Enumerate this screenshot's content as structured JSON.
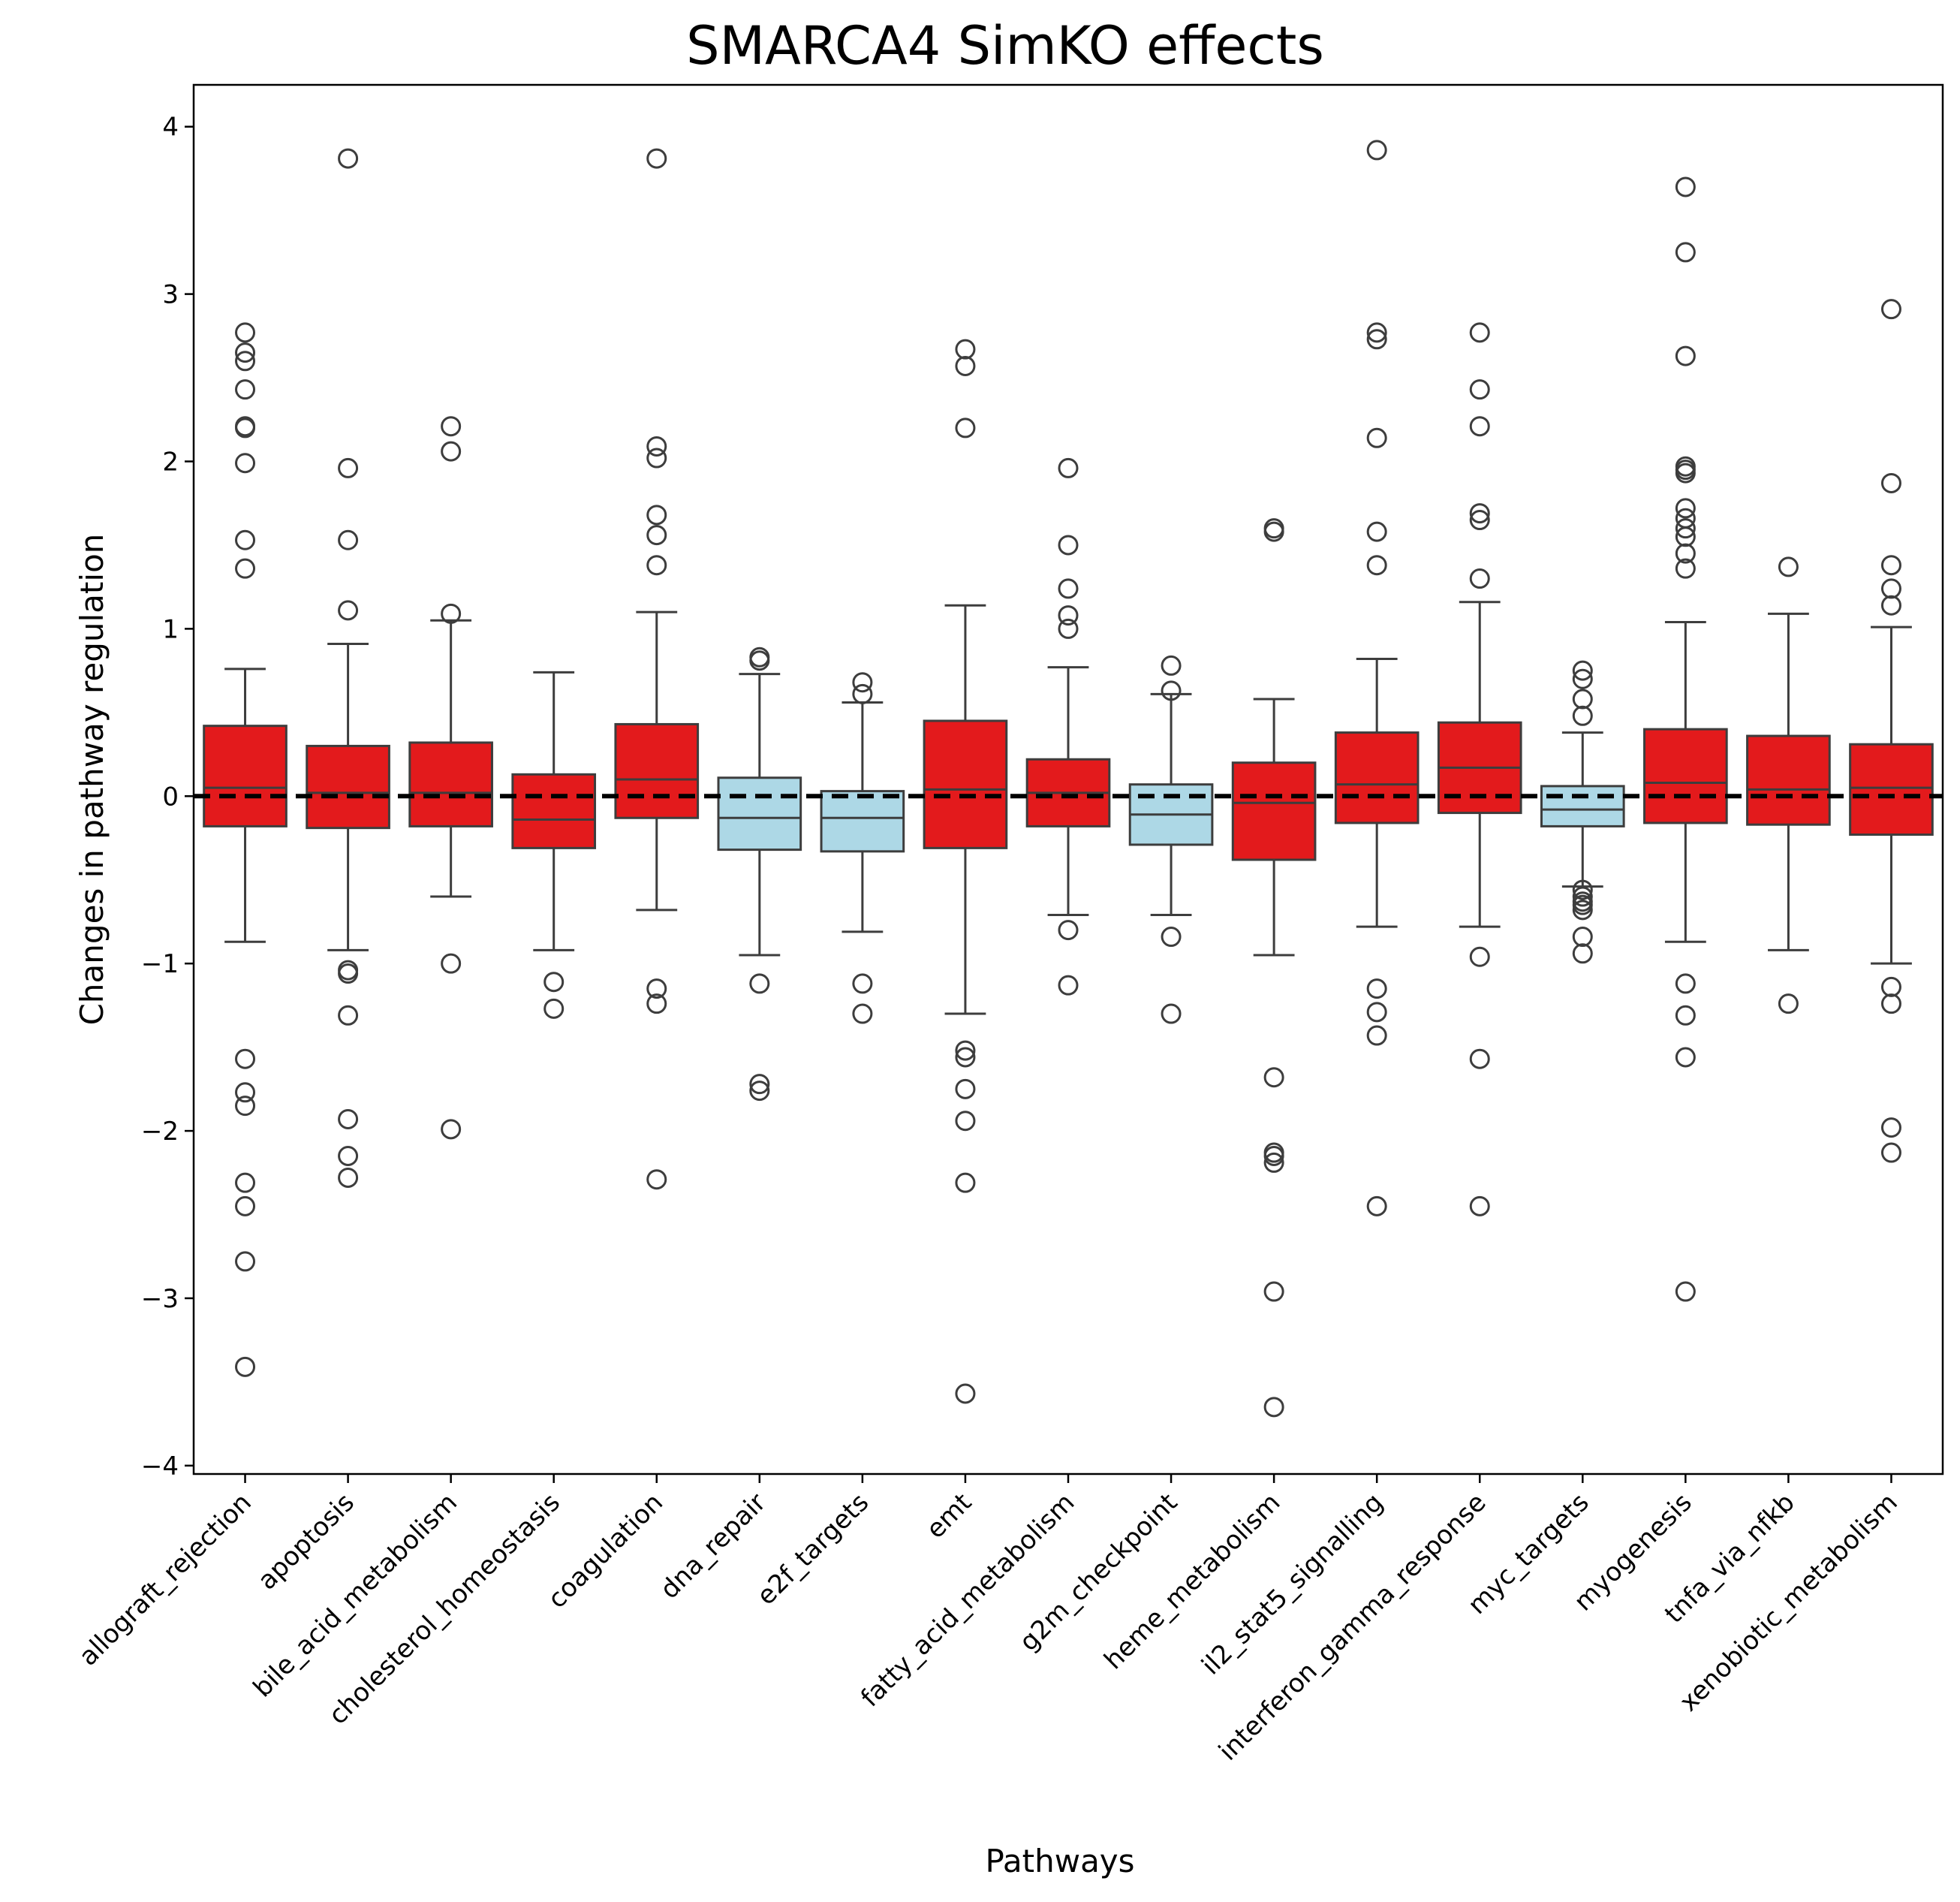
{
  "chart_data": {
    "type": "box",
    "title": "SMARCA4 SimKO effects",
    "xlabel": "Pathways",
    "ylabel": "Changes in pathway regulation",
    "ylim": [
      -4.05,
      4.25
    ],
    "yticks": [
      -4,
      -3,
      -2,
      -1,
      0,
      1,
      2,
      3,
      4
    ],
    "ytick_labels": [
      "−4",
      "−3",
      "−2",
      "−1",
      "0",
      "1",
      "2",
      "3",
      "4"
    ],
    "reference_line": 0,
    "colors": {
      "up": "#e31a1c",
      "down": "#add8e6",
      "stroke": "#3d3d3d",
      "reference": "#000000"
    },
    "categories": [
      "allograft_rejection",
      "apoptosis",
      "bile_acid_metabolism",
      "cholesterol_homeostasis",
      "coagulation",
      "dna_repair",
      "e2f_targets",
      "emt",
      "fatty_acid_metabolism",
      "g2m_checkpoint",
      "heme_metabolism",
      "il2_stat5_signalling",
      "interferon_gamma_response",
      "myc_targets",
      "myogenesis",
      "tnfa_via_nfkb",
      "xenobiotic_metabolism"
    ],
    "boxes": [
      {
        "category": "allograft_rejection",
        "color": "up",
        "q1": -0.18,
        "median": 0.05,
        "q3": 0.42,
        "whisker_low": -0.87,
        "whisker_high": 0.76,
        "outliers": [
          2.77,
          2.65,
          2.6,
          2.43,
          2.21,
          2.2,
          1.99,
          1.53,
          1.36,
          -1.57,
          -1.77,
          -1.85,
          -2.31,
          -2.45,
          -2.78,
          -3.41
        ]
      },
      {
        "category": "apoptosis",
        "color": "up",
        "q1": -0.19,
        "median": 0.02,
        "q3": 0.3,
        "whisker_low": -0.92,
        "whisker_high": 0.91,
        "outliers": [
          3.81,
          1.96,
          1.53,
          1.11,
          -1.04,
          -1.06,
          -1.31,
          -1.93,
          -2.15,
          -2.28
        ]
      },
      {
        "category": "bile_acid_metabolism",
        "color": "up",
        "q1": -0.18,
        "median": 0.02,
        "q3": 0.32,
        "whisker_low": -0.6,
        "whisker_high": 1.05,
        "outliers": [
          2.21,
          2.06,
          1.09,
          -1.0,
          -1.99
        ]
      },
      {
        "category": "cholesterol_homeostasis",
        "color": "up",
        "q1": -0.31,
        "median": -0.14,
        "q3": 0.13,
        "whisker_low": -0.92,
        "whisker_high": 0.74,
        "outliers": [
          -1.11,
          -1.27
        ]
      },
      {
        "category": "coagulation",
        "color": "up",
        "q1": -0.13,
        "median": 0.1,
        "q3": 0.43,
        "whisker_low": -0.68,
        "whisker_high": 1.1,
        "outliers": [
          3.81,
          2.09,
          2.02,
          1.68,
          1.56,
          1.38,
          -1.15,
          -1.24,
          -2.29
        ]
      },
      {
        "category": "dna_repair",
        "color": "down",
        "q1": -0.32,
        "median": -0.13,
        "q3": 0.11,
        "whisker_low": -0.95,
        "whisker_high": 0.73,
        "outliers": [
          0.83,
          0.81,
          -1.12,
          -1.72,
          -1.76
        ]
      },
      {
        "category": "e2f_targets",
        "color": "down",
        "q1": -0.33,
        "median": -0.13,
        "q3": 0.03,
        "whisker_low": -0.81,
        "whisker_high": 0.56,
        "outliers": [
          0.68,
          0.61,
          -1.12,
          -1.3
        ]
      },
      {
        "category": "emt",
        "color": "up",
        "q1": -0.31,
        "median": 0.04,
        "q3": 0.45,
        "whisker_low": -1.3,
        "whisker_high": 1.14,
        "outliers": [
          2.67,
          2.57,
          2.2,
          -1.52,
          -1.56,
          -1.75,
          -1.94,
          -2.31,
          -3.57
        ]
      },
      {
        "category": "fatty_acid_metabolism",
        "color": "up",
        "q1": -0.18,
        "median": 0.02,
        "q3": 0.22,
        "whisker_low": -0.71,
        "whisker_high": 0.77,
        "outliers": [
          1.96,
          1.5,
          1.24,
          1.08,
          1.0,
          -0.8,
          -1.13
        ]
      },
      {
        "category": "g2m_checkpoint",
        "color": "down",
        "q1": -0.29,
        "median": -0.11,
        "q3": 0.07,
        "whisker_low": -0.71,
        "whisker_high": 0.61,
        "outliers": [
          0.78,
          0.63,
          -0.84,
          -1.3
        ]
      },
      {
        "category": "heme_metabolism",
        "color": "up",
        "q1": -0.38,
        "median": -0.04,
        "q3": 0.2,
        "whisker_low": -0.95,
        "whisker_high": 0.58,
        "outliers": [
          1.6,
          1.58,
          -1.68,
          -2.13,
          -2.15,
          -2.19,
          -2.96,
          -3.65
        ]
      },
      {
        "category": "il2_stat5_signalling",
        "color": "up",
        "q1": -0.16,
        "median": 0.07,
        "q3": 0.38,
        "whisker_low": -0.78,
        "whisker_high": 0.82,
        "outliers": [
          3.86,
          2.77,
          2.73,
          2.14,
          1.58,
          1.38,
          -1.15,
          -1.29,
          -1.43,
          -2.45
        ]
      },
      {
        "category": "interferon_gamma_response",
        "color": "up",
        "q1": -0.1,
        "median": 0.17,
        "q3": 0.44,
        "whisker_low": -0.78,
        "whisker_high": 1.16,
        "outliers": [
          2.77,
          2.43,
          2.21,
          1.69,
          1.65,
          1.3,
          -0.96,
          -1.57,
          -2.45
        ]
      },
      {
        "category": "myc_targets",
        "color": "down",
        "q1": -0.18,
        "median": -0.08,
        "q3": 0.06,
        "whisker_low": -0.54,
        "whisker_high": 0.38,
        "outliers": [
          0.75,
          0.7,
          0.58,
          0.48,
          -0.56,
          -0.6,
          -0.63,
          -0.65,
          -0.68,
          -0.84,
          -0.94
        ]
      },
      {
        "category": "myogenesis",
        "color": "up",
        "q1": -0.16,
        "median": 0.08,
        "q3": 0.4,
        "whisker_low": -0.87,
        "whisker_high": 1.04,
        "outliers": [
          3.64,
          3.25,
          2.63,
          1.97,
          1.95,
          1.93,
          1.72,
          1.66,
          1.6,
          1.55,
          1.45,
          1.36,
          -1.12,
          -1.31,
          -1.56,
          -2.96
        ]
      },
      {
        "category": "tnfa_via_nfkb",
        "color": "up",
        "q1": -0.17,
        "median": 0.04,
        "q3": 0.36,
        "whisker_low": -0.92,
        "whisker_high": 1.09,
        "outliers": [
          1.37,
          -1.24
        ]
      },
      {
        "category": "xenobiotic_metabolism",
        "color": "up",
        "q1": -0.23,
        "median": 0.05,
        "q3": 0.31,
        "whisker_low": -1.0,
        "whisker_high": 1.01,
        "outliers": [
          2.91,
          1.87,
          1.38,
          1.24,
          1.14,
          -1.14,
          -1.24,
          -1.98,
          -2.13
        ]
      }
    ]
  }
}
